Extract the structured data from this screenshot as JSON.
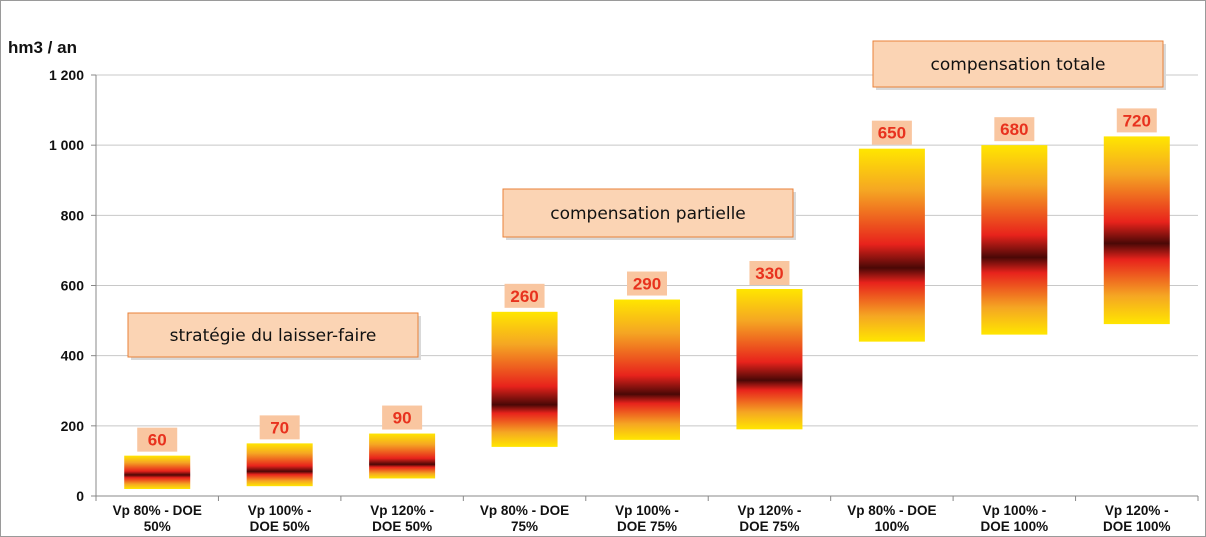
{
  "chart_data": {
    "type": "bar",
    "subtype": "floating-range-gradient",
    "ylabel": "hm3 / an",
    "xlabel": "",
    "ylim": [
      0,
      1200
    ],
    "yticks": [
      0,
      200,
      400,
      600,
      800,
      1000,
      1200
    ],
    "ytick_labels": [
      "0",
      "200",
      "400",
      "600",
      "800",
      "1 000",
      "1 200"
    ],
    "grid": "horizontal",
    "categories": [
      [
        "Vp 80% - DOE",
        "50%"
      ],
      [
        "Vp 100% -",
        "DOE 50%"
      ],
      [
        "Vp 120% -",
        "DOE 50%"
      ],
      [
        "Vp 80% - DOE",
        "75%"
      ],
      [
        "Vp 100% -",
        "DOE 75%"
      ],
      [
        "Vp 120% -",
        "DOE 75%"
      ],
      [
        "Vp 80% - DOE",
        "100%"
      ],
      [
        "Vp 100% -",
        "DOE 100%"
      ],
      [
        "Vp 120% -",
        "DOE 100%"
      ]
    ],
    "values": [
      60,
      70,
      90,
      260,
      290,
      330,
      650,
      680,
      720
    ],
    "ranges": [
      [
        20,
        115
      ],
      [
        28,
        150
      ],
      [
        50,
        178
      ],
      [
        140,
        525
      ],
      [
        160,
        560
      ],
      [
        190,
        590
      ],
      [
        440,
        990
      ],
      [
        460,
        1000
      ],
      [
        490,
        1025
      ]
    ],
    "groups": [
      {
        "label": "stratégie du laisser-faire",
        "from": 0,
        "to": 2
      },
      {
        "label": "compensation partielle",
        "from": 3,
        "to": 5
      },
      {
        "label": "compensation totale",
        "from": 6,
        "to": 8
      }
    ],
    "colors": {
      "edge": "#ffe600",
      "mid": "#f5a623",
      "red": "#e8231c",
      "center": "#4a0806",
      "value_text": "#e8321e",
      "value_box": "#f9c6a0",
      "callout_fill": "#fbd4b4",
      "callout_border": "#e8823a",
      "grid": "#c8c8c8",
      "axis": "#888888"
    }
  }
}
